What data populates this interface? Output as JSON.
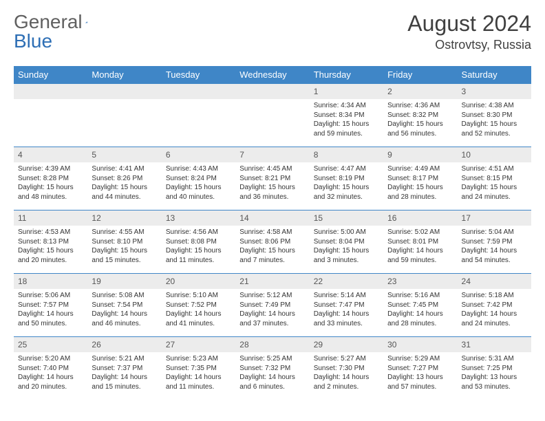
{
  "logo": {
    "part1": "General",
    "part2": "Blue"
  },
  "title": "August 2024",
  "location": "Ostrovtsy, Russia",
  "weekdays": [
    "Sunday",
    "Monday",
    "Tuesday",
    "Wednesday",
    "Thursday",
    "Friday",
    "Saturday"
  ],
  "colors": {
    "header_bg": "#3f86c7",
    "header_text": "#ffffff",
    "daynum_bg": "#ececec",
    "row_divider": "#3f86c7",
    "logo_gray": "#606060",
    "logo_blue": "#2e6fb5"
  },
  "weeks": [
    [
      {
        "n": "",
        "sr": "",
        "ss": "",
        "dl": ""
      },
      {
        "n": "",
        "sr": "",
        "ss": "",
        "dl": ""
      },
      {
        "n": "",
        "sr": "",
        "ss": "",
        "dl": ""
      },
      {
        "n": "",
        "sr": "",
        "ss": "",
        "dl": ""
      },
      {
        "n": "1",
        "sr": "Sunrise: 4:34 AM",
        "ss": "Sunset: 8:34 PM",
        "dl": "Daylight: 15 hours and 59 minutes."
      },
      {
        "n": "2",
        "sr": "Sunrise: 4:36 AM",
        "ss": "Sunset: 8:32 PM",
        "dl": "Daylight: 15 hours and 56 minutes."
      },
      {
        "n": "3",
        "sr": "Sunrise: 4:38 AM",
        "ss": "Sunset: 8:30 PM",
        "dl": "Daylight: 15 hours and 52 minutes."
      }
    ],
    [
      {
        "n": "4",
        "sr": "Sunrise: 4:39 AM",
        "ss": "Sunset: 8:28 PM",
        "dl": "Daylight: 15 hours and 48 minutes."
      },
      {
        "n": "5",
        "sr": "Sunrise: 4:41 AM",
        "ss": "Sunset: 8:26 PM",
        "dl": "Daylight: 15 hours and 44 minutes."
      },
      {
        "n": "6",
        "sr": "Sunrise: 4:43 AM",
        "ss": "Sunset: 8:24 PM",
        "dl": "Daylight: 15 hours and 40 minutes."
      },
      {
        "n": "7",
        "sr": "Sunrise: 4:45 AM",
        "ss": "Sunset: 8:21 PM",
        "dl": "Daylight: 15 hours and 36 minutes."
      },
      {
        "n": "8",
        "sr": "Sunrise: 4:47 AM",
        "ss": "Sunset: 8:19 PM",
        "dl": "Daylight: 15 hours and 32 minutes."
      },
      {
        "n": "9",
        "sr": "Sunrise: 4:49 AM",
        "ss": "Sunset: 8:17 PM",
        "dl": "Daylight: 15 hours and 28 minutes."
      },
      {
        "n": "10",
        "sr": "Sunrise: 4:51 AM",
        "ss": "Sunset: 8:15 PM",
        "dl": "Daylight: 15 hours and 24 minutes."
      }
    ],
    [
      {
        "n": "11",
        "sr": "Sunrise: 4:53 AM",
        "ss": "Sunset: 8:13 PM",
        "dl": "Daylight: 15 hours and 20 minutes."
      },
      {
        "n": "12",
        "sr": "Sunrise: 4:55 AM",
        "ss": "Sunset: 8:10 PM",
        "dl": "Daylight: 15 hours and 15 minutes."
      },
      {
        "n": "13",
        "sr": "Sunrise: 4:56 AM",
        "ss": "Sunset: 8:08 PM",
        "dl": "Daylight: 15 hours and 11 minutes."
      },
      {
        "n": "14",
        "sr": "Sunrise: 4:58 AM",
        "ss": "Sunset: 8:06 PM",
        "dl": "Daylight: 15 hours and 7 minutes."
      },
      {
        "n": "15",
        "sr": "Sunrise: 5:00 AM",
        "ss": "Sunset: 8:04 PM",
        "dl": "Daylight: 15 hours and 3 minutes."
      },
      {
        "n": "16",
        "sr": "Sunrise: 5:02 AM",
        "ss": "Sunset: 8:01 PM",
        "dl": "Daylight: 14 hours and 59 minutes."
      },
      {
        "n": "17",
        "sr": "Sunrise: 5:04 AM",
        "ss": "Sunset: 7:59 PM",
        "dl": "Daylight: 14 hours and 54 minutes."
      }
    ],
    [
      {
        "n": "18",
        "sr": "Sunrise: 5:06 AM",
        "ss": "Sunset: 7:57 PM",
        "dl": "Daylight: 14 hours and 50 minutes."
      },
      {
        "n": "19",
        "sr": "Sunrise: 5:08 AM",
        "ss": "Sunset: 7:54 PM",
        "dl": "Daylight: 14 hours and 46 minutes."
      },
      {
        "n": "20",
        "sr": "Sunrise: 5:10 AM",
        "ss": "Sunset: 7:52 PM",
        "dl": "Daylight: 14 hours and 41 minutes."
      },
      {
        "n": "21",
        "sr": "Sunrise: 5:12 AM",
        "ss": "Sunset: 7:49 PM",
        "dl": "Daylight: 14 hours and 37 minutes."
      },
      {
        "n": "22",
        "sr": "Sunrise: 5:14 AM",
        "ss": "Sunset: 7:47 PM",
        "dl": "Daylight: 14 hours and 33 minutes."
      },
      {
        "n": "23",
        "sr": "Sunrise: 5:16 AM",
        "ss": "Sunset: 7:45 PM",
        "dl": "Daylight: 14 hours and 28 minutes."
      },
      {
        "n": "24",
        "sr": "Sunrise: 5:18 AM",
        "ss": "Sunset: 7:42 PM",
        "dl": "Daylight: 14 hours and 24 minutes."
      }
    ],
    [
      {
        "n": "25",
        "sr": "Sunrise: 5:20 AM",
        "ss": "Sunset: 7:40 PM",
        "dl": "Daylight: 14 hours and 20 minutes."
      },
      {
        "n": "26",
        "sr": "Sunrise: 5:21 AM",
        "ss": "Sunset: 7:37 PM",
        "dl": "Daylight: 14 hours and 15 minutes."
      },
      {
        "n": "27",
        "sr": "Sunrise: 5:23 AM",
        "ss": "Sunset: 7:35 PM",
        "dl": "Daylight: 14 hours and 11 minutes."
      },
      {
        "n": "28",
        "sr": "Sunrise: 5:25 AM",
        "ss": "Sunset: 7:32 PM",
        "dl": "Daylight: 14 hours and 6 minutes."
      },
      {
        "n": "29",
        "sr": "Sunrise: 5:27 AM",
        "ss": "Sunset: 7:30 PM",
        "dl": "Daylight: 14 hours and 2 minutes."
      },
      {
        "n": "30",
        "sr": "Sunrise: 5:29 AM",
        "ss": "Sunset: 7:27 PM",
        "dl": "Daylight: 13 hours and 57 minutes."
      },
      {
        "n": "31",
        "sr": "Sunrise: 5:31 AM",
        "ss": "Sunset: 7:25 PM",
        "dl": "Daylight: 13 hours and 53 minutes."
      }
    ]
  ]
}
